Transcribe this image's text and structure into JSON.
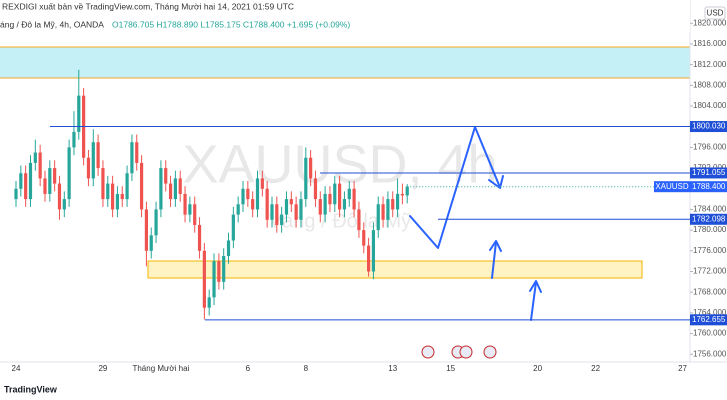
{
  "chart_data": {
    "type": "candlestick",
    "header": {
      "publisher": "REXDIGI xuất bản về TradingView.com, Tháng Mười hai 14, 2021 01:59 UTC",
      "symbol": "áng / Đô la Mỹ, 4h, OANDA",
      "ohlc": "O1786.705 H1788.890 L1785.175 C1788.400 +1.695 (+0.09%)"
    },
    "watermark": {
      "symbol": "XAUUSD, 4h",
      "name": "Vàng / Đô la Mỹ"
    },
    "currency": "USD",
    "x_labels": [
      "24",
      "29",
      "Tháng Mười hai",
      "6",
      "8",
      "13",
      "15",
      "20",
      "22",
      "27"
    ],
    "up_color": "#26a69a",
    "down_color": "#ef5350",
    "open": [
      1786,
      1788,
      1791,
      1786,
      1793,
      1795,
      1790,
      1787,
      1792,
      1789,
      1784,
      1786,
      1796,
      1799,
      1806,
      1794,
      1790,
      1797,
      1792,
      1786,
      1789,
      1784,
      1787,
      1786,
      1791,
      1797,
      1793,
      1784,
      1776,
      1779,
      1784,
      1792,
      1789,
      1786,
      1790,
      1787,
      1783,
      1785,
      1781,
      1776,
      1765,
      1767,
      1774,
      1770,
      1775,
      1778,
      1783,
      1785,
      1788,
      1786,
      1784,
      1790,
      1788,
      1782,
      1785,
      1781,
      1783,
      1786,
      1785,
      1782,
      1786,
      1794,
      1790,
      1786,
      1783,
      1787,
      1785,
      1789,
      1784,
      1786,
      1788,
      1784,
      1780,
      1777,
      1772,
      1780,
      1785,
      1782,
      1786,
      1784,
      1787,
      1786.705
    ],
    "high": [
      1789.5,
      1792.5,
      1792.5,
      1794.5,
      1797.5,
      1796.5,
      1791.5,
      1793.5,
      1793.5,
      1790.5,
      1787.5,
      1797.5,
      1803,
      1811,
      1807.5,
      1795.5,
      1799.5,
      1798.5,
      1793.5,
      1790.5,
      1790.5,
      1788.5,
      1788.5,
      1792.5,
      1798.5,
      1798.5,
      1794.5,
      1785.5,
      1780.5,
      1785.5,
      1793.5,
      1793.5,
      1790.5,
      1791.5,
      1791.5,
      1788.5,
      1786.5,
      1786.5,
      1782.5,
      1777.5,
      1768.5,
      1775.5,
      1775.5,
      1776.5,
      1779.5,
      1784.5,
      1786.5,
      1789.5,
      1789.5,
      1787.5,
      1791.5,
      1791.5,
      1789.5,
      1786.5,
      1786.5,
      1784.5,
      1787.5,
      1787.5,
      1786.5,
      1787.5,
      1796,
      1795.5,
      1791.5,
      1787.5,
      1788.5,
      1788.5,
      1790.5,
      1790.5,
      1787.5,
      1789.5,
      1789.5,
      1785.5,
      1781.5,
      1778.5,
      1781.5,
      1786.5,
      1786.5,
      1787.5,
      1787.5,
      1790,
      1789,
      1788.89
    ],
    "low": [
      1784.5,
      1786.5,
      1784.5,
      1784.5,
      1791.5,
      1788.5,
      1785.5,
      1785.5,
      1787.5,
      1782,
      1782.5,
      1784.5,
      1794.5,
      1797.5,
      1792.5,
      1788.5,
      1788.5,
      1790.5,
      1784.5,
      1784.5,
      1782.5,
      1782.5,
      1784.5,
      1784.5,
      1789.5,
      1791.5,
      1782.5,
      1773,
      1774.5,
      1777.5,
      1782.5,
      1787.5,
      1784.5,
      1784.5,
      1785.5,
      1781.5,
      1781.5,
      1779.5,
      1774.5,
      1762.7,
      1763.5,
      1765.5,
      1768.5,
      1768.5,
      1773.5,
      1776.5,
      1781.5,
      1783.5,
      1784.5,
      1782.5,
      1782.5,
      1786.5,
      1780.5,
      1780.5,
      1779.5,
      1779.5,
      1781.5,
      1783.5,
      1780.5,
      1780.5,
      1784.5,
      1788.5,
      1784.5,
      1781.5,
      1781.5,
      1783.5,
      1783.5,
      1782.5,
      1782.5,
      1784.5,
      1782.5,
      1778.5,
      1775.5,
      1771,
      1770.5,
      1778.5,
      1780.5,
      1780.5,
      1782.5,
      1782.5,
      1785,
      1785.175
    ],
    "close": [
      1788,
      1791,
      1786,
      1793,
      1795,
      1790,
      1787,
      1792,
      1789,
      1784,
      1786,
      1796,
      1799,
      1806,
      1794,
      1790,
      1797,
      1792,
      1786,
      1789,
      1784,
      1787,
      1786,
      1791,
      1797,
      1793,
      1784,
      1776,
      1779,
      1784,
      1792,
      1789,
      1786,
      1790,
      1787,
      1783,
      1785,
      1781,
      1776,
      1765,
      1767,
      1774,
      1770,
      1775,
      1778,
      1783,
      1785,
      1788,
      1786,
      1784,
      1790,
      1788,
      1782,
      1785,
      1781,
      1783,
      1786,
      1785,
      1782,
      1786,
      1794,
      1790,
      1786,
      1783,
      1787,
      1785,
      1789,
      1784,
      1786,
      1788,
      1784,
      1780,
      1777,
      1772,
      1780,
      1785,
      1782,
      1786,
      1784,
      1787,
      1786.705,
      1788.4
    ],
    "ylim": [
      1754.5,
      1824.5
    ],
    "yticks": [
      {
        "value": 1820,
        "label": "1820.000"
      },
      {
        "value": 1816,
        "label": "1816.000"
      },
      {
        "value": 1812,
        "label": "1812.000"
      },
      {
        "value": 1808,
        "label": "1808.000"
      },
      {
        "value": 1804,
        "label": "1804.000"
      },
      {
        "value": 1800,
        "label": "1800.000"
      },
      {
        "value": 1796,
        "label": "1796.000"
      },
      {
        "value": 1792,
        "label": "1792.000"
      },
      {
        "value": 1788,
        "label": "1788.000"
      },
      {
        "value": 1784,
        "label": "1784.000"
      },
      {
        "value": 1780,
        "label": "1780.000"
      },
      {
        "value": 1776,
        "label": "1776.000"
      },
      {
        "value": 1772,
        "label": "1772.000"
      },
      {
        "value": 1768,
        "label": "1768.000"
      },
      {
        "value": 1764,
        "label": "1764.000"
      },
      {
        "value": 1760,
        "label": "1760.000"
      },
      {
        "value": 1756,
        "label": "1756.000"
      }
    ],
    "levels": [
      {
        "value": 1800.03,
        "label": "1800.030"
      },
      {
        "value": 1791.055,
        "label": "1791.055"
      },
      {
        "value": 1782.098,
        "label": "1782.098"
      },
      {
        "value": 1762.655,
        "label": "1762.655"
      }
    ],
    "last_price": {
      "name": "XAUUSD",
      "value": 1788.4,
      "label": "1788.400"
    },
    "footer": "TradingView"
  }
}
